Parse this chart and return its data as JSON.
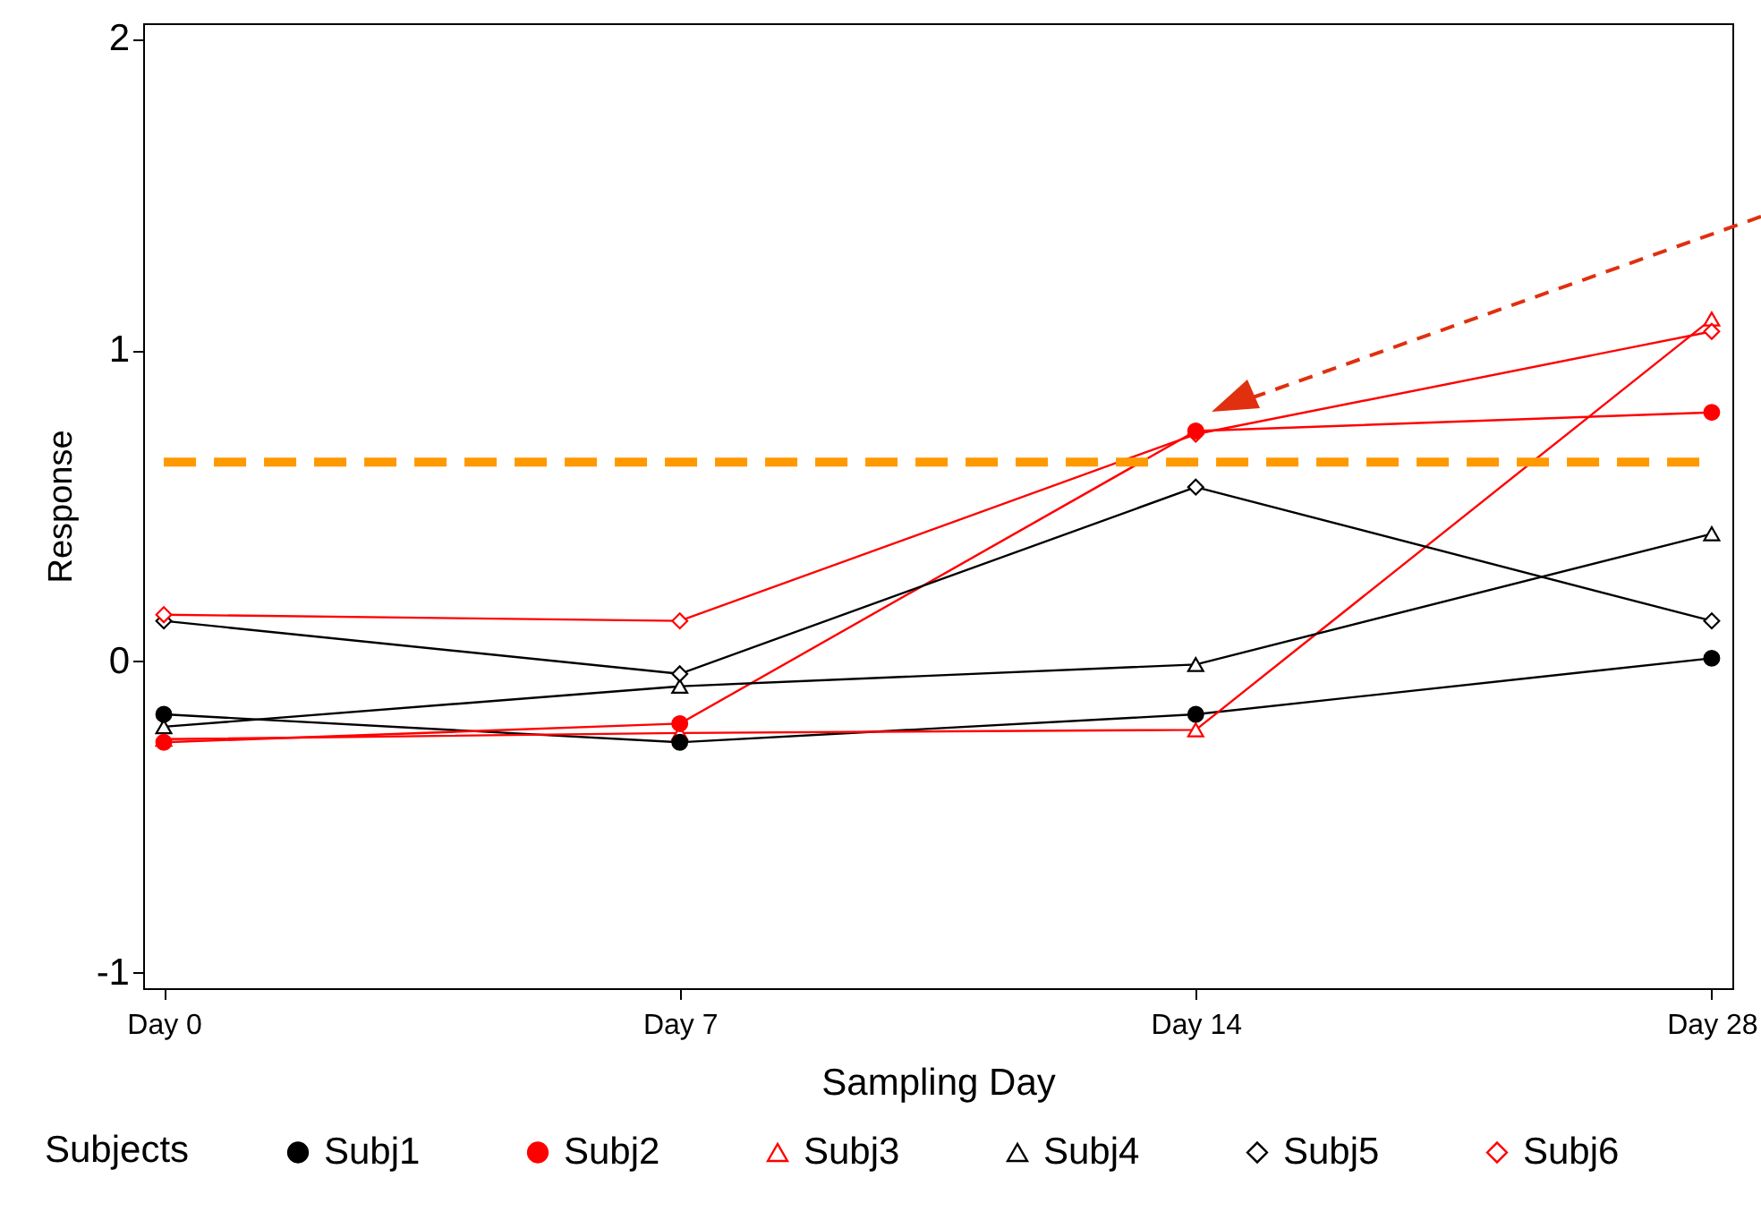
{
  "chart_data": {
    "type": "line",
    "xlabel": "Sampling Day",
    "ylabel": "Response",
    "legend_title": "Subjects",
    "legend": "bottom",
    "grid": false,
    "categories": [
      "Day 0",
      "Day 7",
      "Day 14",
      "Day 28"
    ],
    "ylim": [
      -1.05,
      2.05
    ],
    "yticks": [
      -1,
      0,
      1,
      2
    ],
    "series": [
      {
        "name": "Subj1",
        "color": "#000000",
        "marker": "circle",
        "values": [
          -0.17,
          -0.26,
          -0.17,
          0.01
        ]
      },
      {
        "name": "Subj2",
        "color": "#ff0000",
        "marker": "circle",
        "values": [
          -0.26,
          -0.2,
          0.74,
          0.8
        ]
      },
      {
        "name": "Subj3",
        "color": "#ff0000",
        "marker": "triangle",
        "values": [
          -0.25,
          -0.23,
          -0.22,
          1.1
        ]
      },
      {
        "name": "Subj4",
        "color": "#000000",
        "marker": "triangle",
        "values": [
          -0.21,
          -0.08,
          -0.01,
          0.41
        ]
      },
      {
        "name": "Subj5",
        "color": "#000000",
        "marker": "diamond",
        "values": [
          0.13,
          -0.04,
          0.56,
          0.13
        ]
      },
      {
        "name": "Subj6",
        "color": "#ff0000",
        "marker": "diamond",
        "values": [
          0.15,
          0.13,
          0.73,
          1.06
        ]
      }
    ],
    "ref_lines": [
      {
        "axis": "y",
        "value": 0.64,
        "color": "#ff9900",
        "line_style": "dashed"
      }
    ]
  }
}
